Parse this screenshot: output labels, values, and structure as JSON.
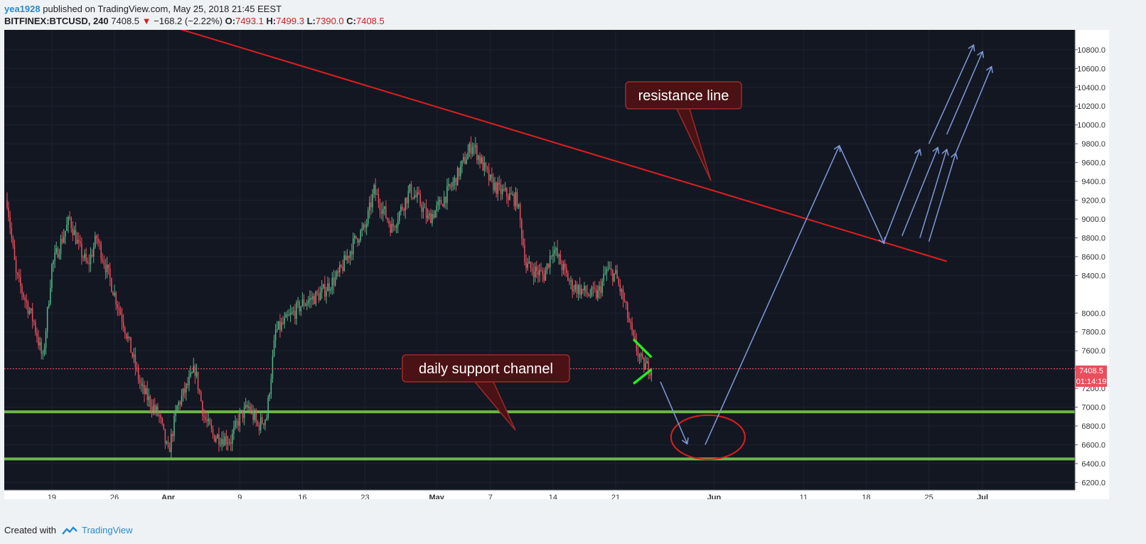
{
  "header": {
    "author": "yea1928",
    "published_text": "published on TradingView.com, May 25, 2018 21:45 EEST",
    "symbol": "BITFINEX:BTCUSD, 240",
    "last": "7408.5",
    "change": "−168.2 (−2.22%)",
    "ohlc": [
      {
        "label": "O:",
        "value": "7493.1"
      },
      {
        "label": "H:",
        "value": "7499.3"
      },
      {
        "label": "L:",
        "value": "7390.0"
      },
      {
        "label": "C:",
        "value": "7408.5"
      }
    ]
  },
  "footer": {
    "created_with": "Created with",
    "brand": "TradingView"
  },
  "colors": {
    "background": "#131722",
    "up": "#53b987",
    "down": "#eb4d5c",
    "resistance": "#e01e1e",
    "support": "#6bb84a",
    "projection": "#7f9ad8",
    "triangle": "#22ee22",
    "ellipse": "#e01e1e",
    "callout_fill": "#4a1215",
    "callout_border": "#9c2a2a"
  },
  "chart_data": {
    "type": "candlestick",
    "symbol": "BITFINEX:BTCUSD",
    "interval": "240",
    "x_range": [
      "2018-03-14",
      "2018-07-11"
    ],
    "ylim": [
      6150,
      10950
    ],
    "y_ticks": [
      "10800.0",
      "10600.0",
      "10400.0",
      "10200.0",
      "10000.0",
      "9800.0",
      "9600.0",
      "9400.0",
      "9200.0",
      "9000.0",
      "8800.0",
      "8600.0",
      "8400.0",
      "8000.0",
      "7800.0",
      "7600.0",
      "7400.0",
      "7200.0",
      "7000.0",
      "6800.0",
      "6600.0",
      "6400.0",
      "6200.0"
    ],
    "x_ticks": [
      {
        "label": "19",
        "date": "2018-03-19",
        "bold": false
      },
      {
        "label": "26",
        "date": "2018-03-26",
        "bold": false
      },
      {
        "label": "Apr",
        "date": "2018-04-01",
        "bold": true
      },
      {
        "label": "9",
        "date": "2018-04-09",
        "bold": false
      },
      {
        "label": "16",
        "date": "2018-04-16",
        "bold": false
      },
      {
        "label": "23",
        "date": "2018-04-23",
        "bold": false
      },
      {
        "label": "May",
        "date": "2018-05-01",
        "bold": true
      },
      {
        "label": "7",
        "date": "2018-05-07",
        "bold": false
      },
      {
        "label": "14",
        "date": "2018-05-14",
        "bold": false
      },
      {
        "label": "21",
        "date": "2018-05-21",
        "bold": false
      },
      {
        "label": "Jun",
        "date": "2018-06-01",
        "bold": true
      },
      {
        "label": "11",
        "date": "2018-06-11",
        "bold": false
      },
      {
        "label": "18",
        "date": "2018-06-18",
        "bold": false
      },
      {
        "label": "25",
        "date": "2018-06-25",
        "bold": false
      },
      {
        "label": "Jul",
        "date": "2018-07-01",
        "bold": true
      }
    ],
    "price_path": [
      [
        "2018-03-14",
        9200
      ],
      [
        "2018-03-15",
        8400
      ],
      [
        "2018-03-17",
        7900
      ],
      [
        "2018-03-18",
        7500
      ],
      [
        "2018-03-19",
        8500
      ],
      [
        "2018-03-21",
        9000
      ],
      [
        "2018-03-22",
        8700
      ],
      [
        "2018-03-23",
        8500
      ],
      [
        "2018-03-24",
        8800
      ],
      [
        "2018-03-26",
        8200
      ],
      [
        "2018-03-27",
        7900
      ],
      [
        "2018-03-29",
        7200
      ],
      [
        "2018-03-31",
        6900
      ],
      [
        "2018-04-01",
        6500
      ],
      [
        "2018-04-02",
        7000
      ],
      [
        "2018-04-04",
        7400
      ],
      [
        "2018-04-05",
        6900
      ],
      [
        "2018-04-06",
        6700
      ],
      [
        "2018-04-08",
        6650
      ],
      [
        "2018-04-09",
        6900
      ],
      [
        "2018-04-10",
        7000
      ],
      [
        "2018-04-11",
        6800
      ],
      [
        "2018-04-12",
        6900
      ],
      [
        "2018-04-13",
        7800
      ],
      [
        "2018-04-14",
        7900
      ],
      [
        "2018-04-16",
        8100
      ],
      [
        "2018-04-18",
        8200
      ],
      [
        "2018-04-20",
        8400
      ],
      [
        "2018-04-22",
        8800
      ],
      [
        "2018-04-23",
        8900
      ],
      [
        "2018-04-24",
        9300
      ],
      [
        "2018-04-25",
        9100
      ],
      [
        "2018-04-26",
        8900
      ],
      [
        "2018-04-28",
        9300
      ],
      [
        "2018-04-29",
        9200
      ],
      [
        "2018-04-30",
        9000
      ],
      [
        "2018-05-01",
        9100
      ],
      [
        "2018-05-03",
        9400
      ],
      [
        "2018-05-05",
        9800
      ],
      [
        "2018-05-06",
        9600
      ],
      [
        "2018-05-07",
        9400
      ],
      [
        "2018-05-08",
        9300
      ],
      [
        "2018-05-10",
        9200
      ],
      [
        "2018-05-11",
        8500
      ],
      [
        "2018-05-13",
        8400
      ],
      [
        "2018-05-14",
        8700
      ],
      [
        "2018-05-15",
        8500
      ],
      [
        "2018-05-16",
        8300
      ],
      [
        "2018-05-18",
        8200
      ],
      [
        "2018-05-19",
        8200
      ],
      [
        "2018-05-20",
        8450
      ],
      [
        "2018-05-21",
        8400
      ],
      [
        "2018-05-22",
        8100
      ],
      [
        "2018-05-23",
        7700
      ],
      [
        "2018-05-24",
        7450
      ],
      [
        "2018-05-25",
        7408.5
      ]
    ],
    "last_price": "7408.5",
    "countdown": "01:14:19",
    "annotations": {
      "resistance_line": {
        "label": "resistance line",
        "points": [
          [
            "2018-03-27",
            11200
          ],
          [
            "2018-06-27",
            8550
          ]
        ]
      },
      "support_channel": {
        "label": "daily support channel",
        "upper": 6950,
        "lower": 6450
      },
      "triangle": {
        "upper": [
          [
            "2018-05-23",
            7720
          ],
          [
            "2018-05-25",
            7530
          ]
        ],
        "lower": [
          [
            "2018-05-23",
            7250
          ],
          [
            "2018-05-25",
            7400
          ]
        ]
      },
      "target_ellipse": {
        "center": [
          "2018-05-31",
          6680
        ]
      },
      "projection_path": [
        [
          "2018-05-26",
          7270
        ],
        [
          "2018-05-29",
          6610
        ],
        [
          "2018-05-31",
          6600
        ],
        [
          "2018-06-15",
          9780
        ],
        [
          "2018-06-20",
          8740
        ]
      ],
      "upside_arrows": [
        [
          [
            "2018-06-20",
            8760
          ],
          [
            "2018-06-24",
            9740
          ]
        ],
        [
          [
            "2018-06-22",
            8820
          ],
          [
            "2018-06-26",
            9760
          ]
        ],
        [
          [
            "2018-06-24",
            8800
          ],
          [
            "2018-06-27",
            9740
          ]
        ],
        [
          [
            "2018-06-25",
            8760
          ],
          [
            "2018-06-28",
            9700
          ]
        ],
        [
          [
            "2018-06-25",
            9800
          ],
          [
            "2018-06-30",
            10850
          ]
        ],
        [
          [
            "2018-06-27",
            9900
          ],
          [
            "2018-07-01",
            10780
          ]
        ],
        [
          [
            "2018-06-28",
            9700
          ],
          [
            "2018-07-02",
            10620
          ]
        ]
      ]
    }
  }
}
